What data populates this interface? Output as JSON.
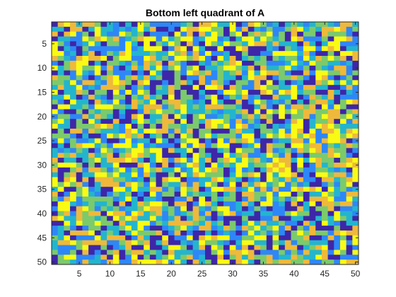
{
  "chart_data": {
    "type": "heatmap",
    "title": "Bottom left quadrant of A",
    "xlabel": "",
    "ylabel": "",
    "rows": 50,
    "cols": 50,
    "xlim": [
      0.5,
      50.5
    ],
    "ylim": [
      0.5,
      50.5
    ],
    "y_direction": "reverse",
    "xticks": [
      5,
      10,
      15,
      20,
      25,
      30,
      35,
      40,
      45,
      50
    ],
    "yticks": [
      5,
      10,
      15,
      20,
      25,
      30,
      35,
      40,
      45,
      50
    ],
    "colormap": [
      "#3e26a8",
      "#2e87f7",
      "#23b5ce",
      "#7bca6c",
      "#efb93b",
      "#f9fb14"
    ],
    "grid": false,
    "legend": "none",
    "note_values": "random-looking integer matrix; individual cell values are not readable from the image"
  }
}
